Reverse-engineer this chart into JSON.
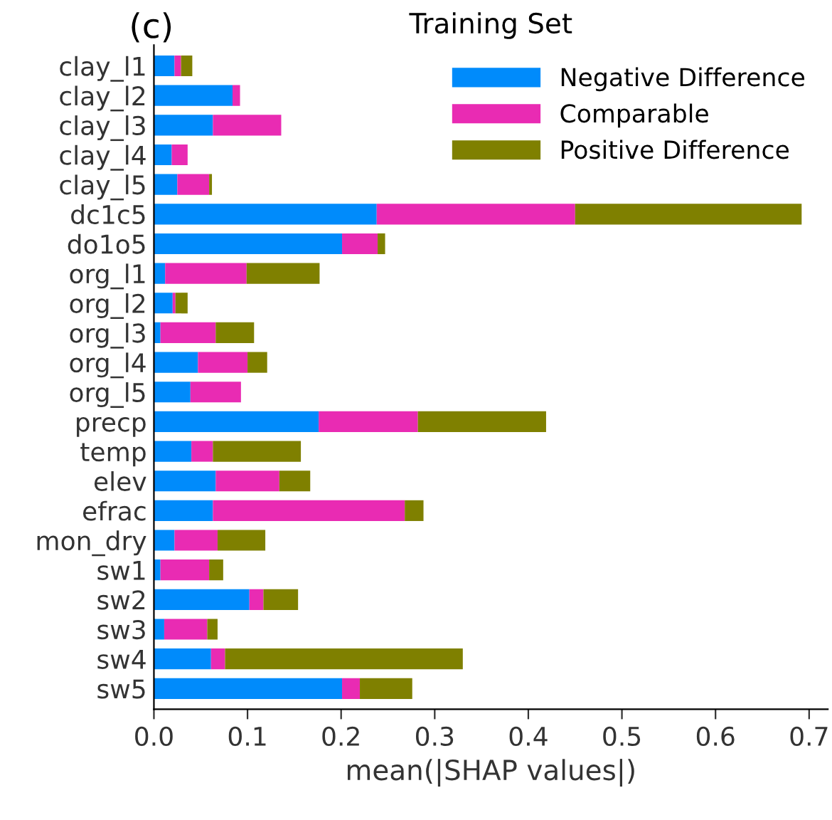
{
  "chart_data": {
    "type": "bar",
    "orientation": "horizontal",
    "stacked": true,
    "title": "Training Set",
    "xlabel": "mean(|SHAP values|)",
    "annotations": [
      "(c)"
    ],
    "categories": [
      "clay_l1",
      "clay_l2",
      "clay_l3",
      "clay_l4",
      "clay_l5",
      "dc1c5",
      "do1o5",
      "org_l1",
      "org_l2",
      "org_l3",
      "org_l4",
      "org_l5",
      "precp",
      "temp",
      "elev",
      "efrac",
      "mon_dry",
      "sw1",
      "sw2",
      "sw3",
      "sw4",
      "sw5"
    ],
    "series": [
      {
        "name": "Negative Difference",
        "color": "#008bfb",
        "values": [
          0.022,
          0.084,
          0.063,
          0.019,
          0.025,
          0.238,
          0.201,
          0.012,
          0.02,
          0.007,
          0.047,
          0.039,
          0.176,
          0.04,
          0.066,
          0.063,
          0.022,
          0.007,
          0.102,
          0.011,
          0.061,
          0.201
        ]
      },
      {
        "name": "Comparable",
        "color": "#e92bb3",
        "values": [
          0.007,
          0.008,
          0.073,
          0.017,
          0.034,
          0.212,
          0.038,
          0.087,
          0.003,
          0.059,
          0.053,
          0.054,
          0.106,
          0.023,
          0.068,
          0.205,
          0.046,
          0.052,
          0.015,
          0.046,
          0.015,
          0.019
        ]
      },
      {
        "name": "Positive Difference",
        "color": "#7f8000",
        "values": [
          0.012,
          0,
          0,
          0,
          0.003,
          0.242,
          0.008,
          0.078,
          0.013,
          0.041,
          0.021,
          0,
          0.137,
          0.094,
          0.033,
          0.02,
          0.051,
          0.015,
          0.037,
          0.011,
          0.254,
          0.056
        ]
      }
    ],
    "xlim": [
      0,
      0.72
    ],
    "xticks": [
      {
        "value": 0,
        "label": "0.0"
      },
      0.1,
      0.2,
      0.3,
      0.4,
      0.5,
      0.6,
      0.7
    ],
    "grid": false,
    "legend": "top right"
  }
}
